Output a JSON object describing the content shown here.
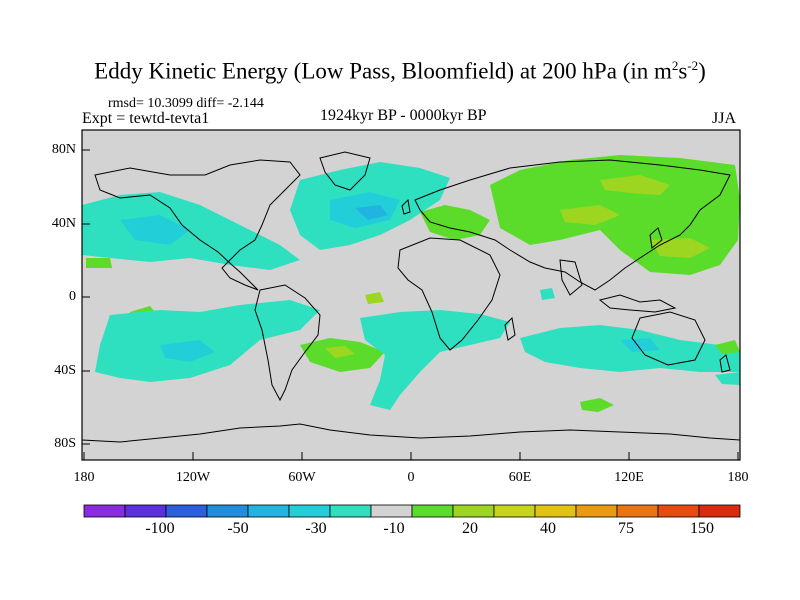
{
  "title_main": "Eddy Kinetic Energy (Low Pass, Bloomfield) at 200 hPa (in m",
  "title_sup1": "2",
  "title_mid": "s",
  "title_sup2": "-2",
  "title_end": ")",
  "stats": "rmsd= 10.3099 diff= -2.144",
  "expt": "Expt = tewtd-tevta1",
  "period": "1924kyr BP - 0000kyr BP",
  "season": "JJA",
  "map": {
    "lat_labels": [
      "80N",
      "40N",
      "0",
      "40S",
      "80S"
    ],
    "lon_labels": [
      "180",
      "120W",
      "60W",
      "0",
      "60E",
      "120E",
      "180"
    ],
    "background_color": "#d3d3d3"
  },
  "colorbar": {
    "colors": [
      "#8a2be2",
      "#5a30e0",
      "#2c5fe0",
      "#1f8fdc",
      "#22b4e0",
      "#22cfd8",
      "#2fe0c0",
      "#d3d3d3",
      "#5cdc2a",
      "#9cd620",
      "#c8d418",
      "#e2c410",
      "#ea9c10",
      "#ec7410",
      "#e84a10",
      "#dc2a10"
    ],
    "labels": [
      "-100",
      "-50",
      "-30",
      "-10",
      "20",
      "40",
      "75",
      "150"
    ]
  }
}
